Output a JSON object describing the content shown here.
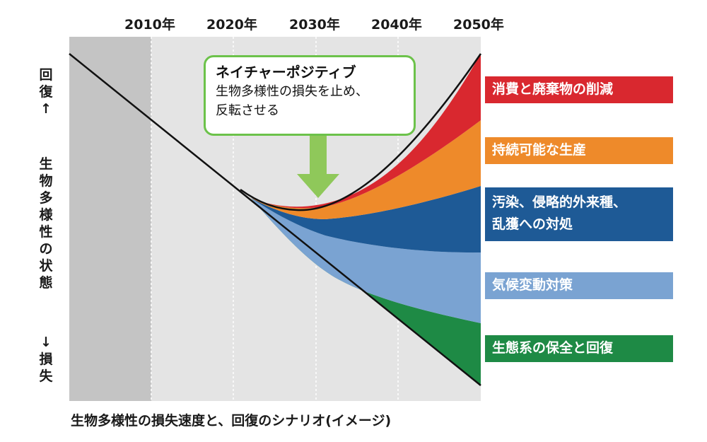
{
  "chart_data": {
    "type": "area",
    "x_ticks": [
      "2010年",
      "2020年",
      "2030年",
      "2040年",
      "2050年"
    ],
    "y_label_top": [
      "回",
      "復",
      "↑"
    ],
    "y_label_mid": [
      "生",
      "物",
      "多",
      "様",
      "性",
      "の",
      "状",
      "態"
    ],
    "y_label_bottom": [
      "↓",
      "損",
      "失"
    ],
    "caption": "生物多様性の損失速度と、回復のシナリオ(イメージ)",
    "callout": {
      "title": "ネイチャーポジティブ",
      "line1": "生物多様性の損失を止め、",
      "line2": "反転させる"
    },
    "series": [
      {
        "name": "消費と廃棄物の削減",
        "color": "#d9282f"
      },
      {
        "name": "持続可能な生産",
        "color": "#ee8a2a"
      },
      {
        "name": "汚染、侵略的外来種、",
        "name2": "乱獲への対処",
        "color": "#1e5a96"
      },
      {
        "name": "気候変動対策",
        "color": "#7aa3d2"
      },
      {
        "name": "生態系の保全と回復",
        "color": "#1e8a45"
      }
    ],
    "colors": {
      "past_band": "#c4c4c4",
      "plot_bg": "#e4e4e4",
      "arrow": "#8fc85a",
      "callout_border": "#6cc24a"
    }
  }
}
